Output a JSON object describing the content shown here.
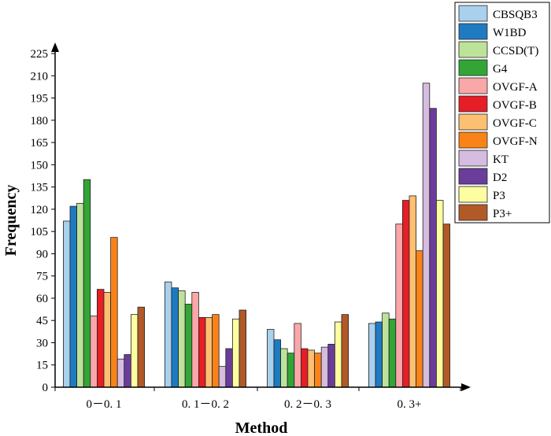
{
  "chart_data": {
    "type": "bar",
    "title": "",
    "xlabel": "Method",
    "ylabel": "Frequency",
    "ylim": [
      0,
      225
    ],
    "yticks": [
      0,
      15,
      30,
      45,
      60,
      75,
      90,
      105,
      120,
      135,
      150,
      165,
      180,
      195,
      210,
      225
    ],
    "categories": [
      "0-0.1",
      "0.1-0.2",
      "0.2-0.3",
      "0.3+"
    ],
    "category_labels": [
      "0－0. 1",
      "0. 1－0. 2",
      "0. 2－0. 3",
      "0. 3+"
    ],
    "legend_position": "top-right",
    "series": [
      {
        "name": "CBSQB3",
        "color": "#a9d0ec",
        "values": [
          112,
          71,
          39,
          43
        ]
      },
      {
        "name": "W1BD",
        "color": "#1e7bc2",
        "values": [
          122,
          67,
          32,
          44
        ]
      },
      {
        "name": "CCSD(T)",
        "color": "#bde29a",
        "values": [
          124,
          65,
          26,
          50
        ]
      },
      {
        "name": "G4",
        "color": "#33a537",
        "values": [
          140,
          56,
          23,
          46
        ]
      },
      {
        "name": "OVGF-A",
        "color": "#f9a7a9",
        "values": [
          48,
          64,
          43,
          110
        ]
      },
      {
        "name": "OVGF-B",
        "color": "#e61e25",
        "values": [
          66,
          47,
          26,
          126
        ]
      },
      {
        "name": "OVGF-C",
        "color": "#fdbf72",
        "values": [
          64,
          47,
          25,
          129
        ]
      },
      {
        "name": "OVGF-N",
        "color": "#f98318",
        "values": [
          101,
          49,
          23,
          92
        ]
      },
      {
        "name": "KT",
        "color": "#d5bce0",
        "values": [
          19,
          14,
          27,
          205
        ]
      },
      {
        "name": "D2",
        "color": "#6a3d9a",
        "values": [
          22,
          26,
          29,
          188
        ]
      },
      {
        "name": "P3",
        "color": "#fefea1",
        "values": [
          49,
          46,
          44,
          126
        ]
      },
      {
        "name": "P3+",
        "color": "#b15a28",
        "values": [
          54,
          52,
          49,
          110
        ]
      }
    ]
  }
}
